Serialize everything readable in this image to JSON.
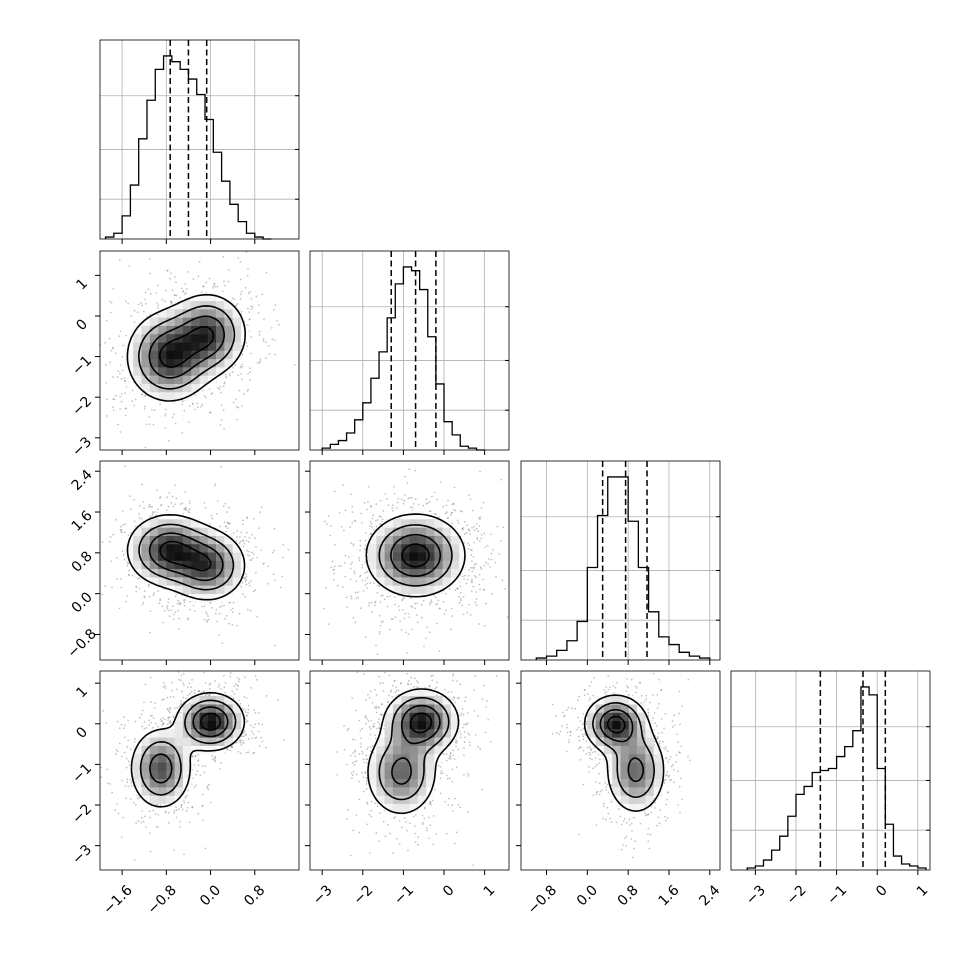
{
  "chart_data": {
    "type": "corner",
    "parameters": 4,
    "grid": true,
    "legend": "none",
    "title": "",
    "axes": [
      {
        "index": 0,
        "range": [
          -2.0,
          1.6
        ],
        "ticks": [
          "−1.6",
          "−0.8",
          "0.0",
          "0.8"
        ],
        "tick_values": [
          -1.6,
          -0.8,
          0.0,
          0.8
        ]
      },
      {
        "index": 1,
        "range": [
          -3.3,
          1.6
        ],
        "ticks": [
          "−3",
          "−2",
          "−1",
          "0",
          "1"
        ],
        "tick_values": [
          -3,
          -2,
          -1,
          0,
          1
        ]
      },
      {
        "index": 2,
        "range": [
          -1.3,
          2.6
        ],
        "ticks": [
          "−0.8",
          "0.0",
          "0.8",
          "1.6",
          "2.4"
        ],
        "tick_values": [
          -0.8,
          0.0,
          0.8,
          1.6,
          2.4
        ]
      },
      {
        "index": 3,
        "range": [
          -3.6,
          1.3
        ],
        "ticks": [
          "−3",
          "−2",
          "−1",
          "0",
          "1"
        ],
        "tick_values": [
          -3,
          -2,
          -1,
          0,
          1
        ]
      }
    ],
    "quantiles": [
      [
        -0.73,
        -0.4,
        -0.07
      ],
      [
        -1.3,
        -0.7,
        -0.2
      ],
      [
        0.3,
        0.75,
        1.17
      ],
      [
        -1.4,
        -0.35,
        0.2
      ]
    ],
    "marginals": [
      {
        "edges": [
          -1.9,
          -1.75,
          -1.6,
          -1.45,
          -1.3,
          -1.15,
          -1.0,
          -0.85,
          -0.7,
          -0.55,
          -0.4,
          -0.25,
          -0.1,
          0.05,
          0.2,
          0.35,
          0.5,
          0.65,
          0.8,
          0.95,
          1.1
        ],
        "counts": [
          1,
          3,
          12,
          28,
          52,
          72,
          88,
          95,
          92,
          88,
          83,
          75,
          62,
          45,
          30,
          18,
          9,
          3,
          1,
          0
        ]
      },
      {
        "edges": [
          -3.0,
          -2.8,
          -2.6,
          -2.4,
          -2.2,
          -2.0,
          -1.8,
          -1.6,
          -1.4,
          -1.2,
          -1.0,
          -0.8,
          -0.6,
          -0.4,
          -0.2,
          0.0,
          0.2,
          0.4,
          0.6,
          0.8,
          1.0
        ],
        "counts": [
          1,
          3,
          5,
          9,
          16,
          25,
          38,
          52,
          70,
          88,
          97,
          95,
          85,
          60,
          35,
          15,
          8,
          2,
          1,
          0
        ]
      },
      {
        "edges": [
          -1.0,
          -0.8,
          -0.6,
          -0.4,
          -0.2,
          0.0,
          0.2,
          0.4,
          0.6,
          0.8,
          1.0,
          1.2,
          1.4,
          1.6,
          1.8,
          2.0,
          2.2,
          2.4
        ],
        "counts": [
          1,
          2,
          5,
          10,
          20,
          48,
          75,
          95,
          95,
          72,
          48,
          25,
          12,
          8,
          4,
          2,
          1
        ]
      },
      {
        "edges": [
          -3.2,
          -3.0,
          -2.8,
          -2.6,
          -2.4,
          -2.2,
          -2.0,
          -1.8,
          -1.6,
          -1.4,
          -1.2,
          -1.0,
          -0.8,
          -0.6,
          -0.4,
          -0.2,
          0.0,
          0.2,
          0.4,
          0.6,
          0.8,
          1.0,
          1.2
        ],
        "counts": [
          1,
          2,
          5,
          10,
          17,
          27,
          38,
          42,
          49,
          50,
          51,
          57,
          62,
          70,
          92,
          88,
          51,
          23,
          7,
          3,
          2,
          1
        ]
      }
    ],
    "pairs": [
      {
        "x_index": 0,
        "y_index": 1,
        "peaks": [
          {
            "x": -0.75,
            "y": -1.0,
            "sx": 0.38,
            "sy": 0.55,
            "w": 1.0
          },
          {
            "x": -0.05,
            "y": -0.45,
            "sx": 0.35,
            "sy": 0.5,
            "w": 0.9
          }
        ]
      },
      {
        "x_index": 0,
        "y_index": 2,
        "peaks": [
          {
            "x": -0.75,
            "y": 0.85,
            "sx": 0.38,
            "sy": 0.35,
            "w": 1.0
          },
          {
            "x": -0.05,
            "y": 0.55,
            "sx": 0.35,
            "sy": 0.35,
            "w": 0.85
          }
        ]
      },
      {
        "x_index": 1,
        "y_index": 2,
        "peaks": [
          {
            "x": -0.7,
            "y": 0.75,
            "sx": 0.6,
            "sy": 0.4,
            "w": 1.0
          }
        ]
      },
      {
        "x_index": 0,
        "y_index": 3,
        "peaks": [
          {
            "x": 0.0,
            "y": 0.05,
            "sx": 0.3,
            "sy": 0.35,
            "w": 1.0
          },
          {
            "x": -0.9,
            "y": -1.1,
            "sx": 0.28,
            "sy": 0.5,
            "w": 0.75
          }
        ]
      },
      {
        "x_index": 1,
        "y_index": 3,
        "peaks": [
          {
            "x": -0.55,
            "y": 0.05,
            "sx": 0.45,
            "sy": 0.4,
            "w": 1.0
          },
          {
            "x": -1.05,
            "y": -1.2,
            "sx": 0.45,
            "sy": 0.55,
            "w": 0.7
          }
        ]
      },
      {
        "x_index": 2,
        "y_index": 3,
        "peaks": [
          {
            "x": 0.55,
            "y": 0.0,
            "sx": 0.3,
            "sy": 0.35,
            "w": 1.0
          },
          {
            "x": 0.95,
            "y": -1.15,
            "sx": 0.3,
            "sy": 0.55,
            "w": 0.7
          }
        ]
      }
    ]
  }
}
